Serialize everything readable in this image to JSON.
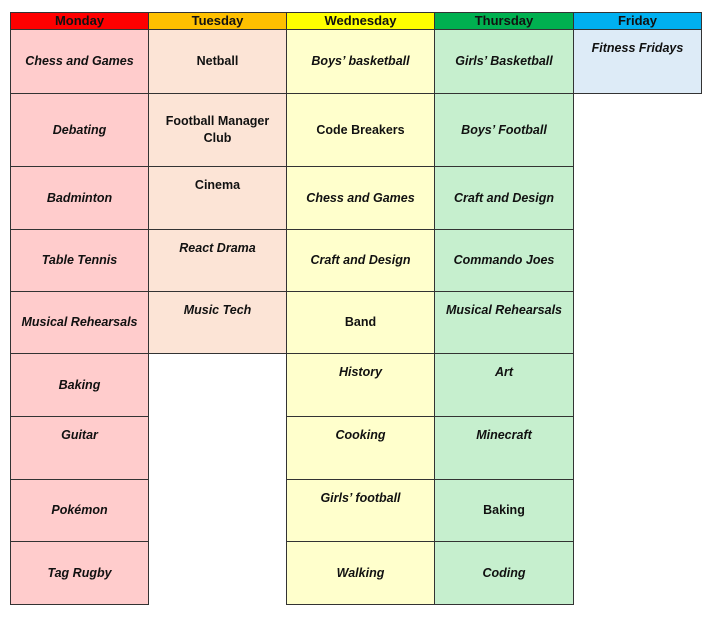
{
  "colors": {
    "monday_header": "#ff0000",
    "tuesday_header": "#ffc000",
    "wednesday_header": "#ffff00",
    "thursday_header": "#00b050",
    "friday_header": "#00b0f0",
    "monday_cell": "#ffcccc",
    "tuesday_cell": "#fce4d6",
    "wednesday_cell": "#ffffcc",
    "thursday_cell": "#c6efce",
    "friday_cell": "#ddebf7"
  },
  "days": [
    {
      "name": "Monday",
      "activities": [
        "Chess and Games",
        "Debating",
        "Badminton",
        "Table Tennis",
        "Musical Rehearsals",
        "Baking",
        "Guitar",
        "Pokémon",
        "Tag Rugby"
      ]
    },
    {
      "name": "Tuesday",
      "activities": [
        "Netball",
        "Football Manager Club",
        "Cinema",
        "React Drama",
        "Music Tech"
      ]
    },
    {
      "name": "Wednesday",
      "activities": [
        "Boys’ basketball",
        "Code Breakers",
        "Chess and Games",
        "Craft and Design",
        "Band",
        "History",
        "Cooking",
        "Girls’ football",
        "Walking"
      ]
    },
    {
      "name": "Thursday",
      "activities": [
        "Girls’ Basketball",
        "Boys’ Football",
        "Craft and Design",
        "Commando Joes",
        "Musical Rehearsals",
        "Art",
        "Minecraft",
        "Baking",
        "Coding"
      ]
    },
    {
      "name": "Friday",
      "activities": [
        "Fitness Fridays"
      ]
    }
  ]
}
